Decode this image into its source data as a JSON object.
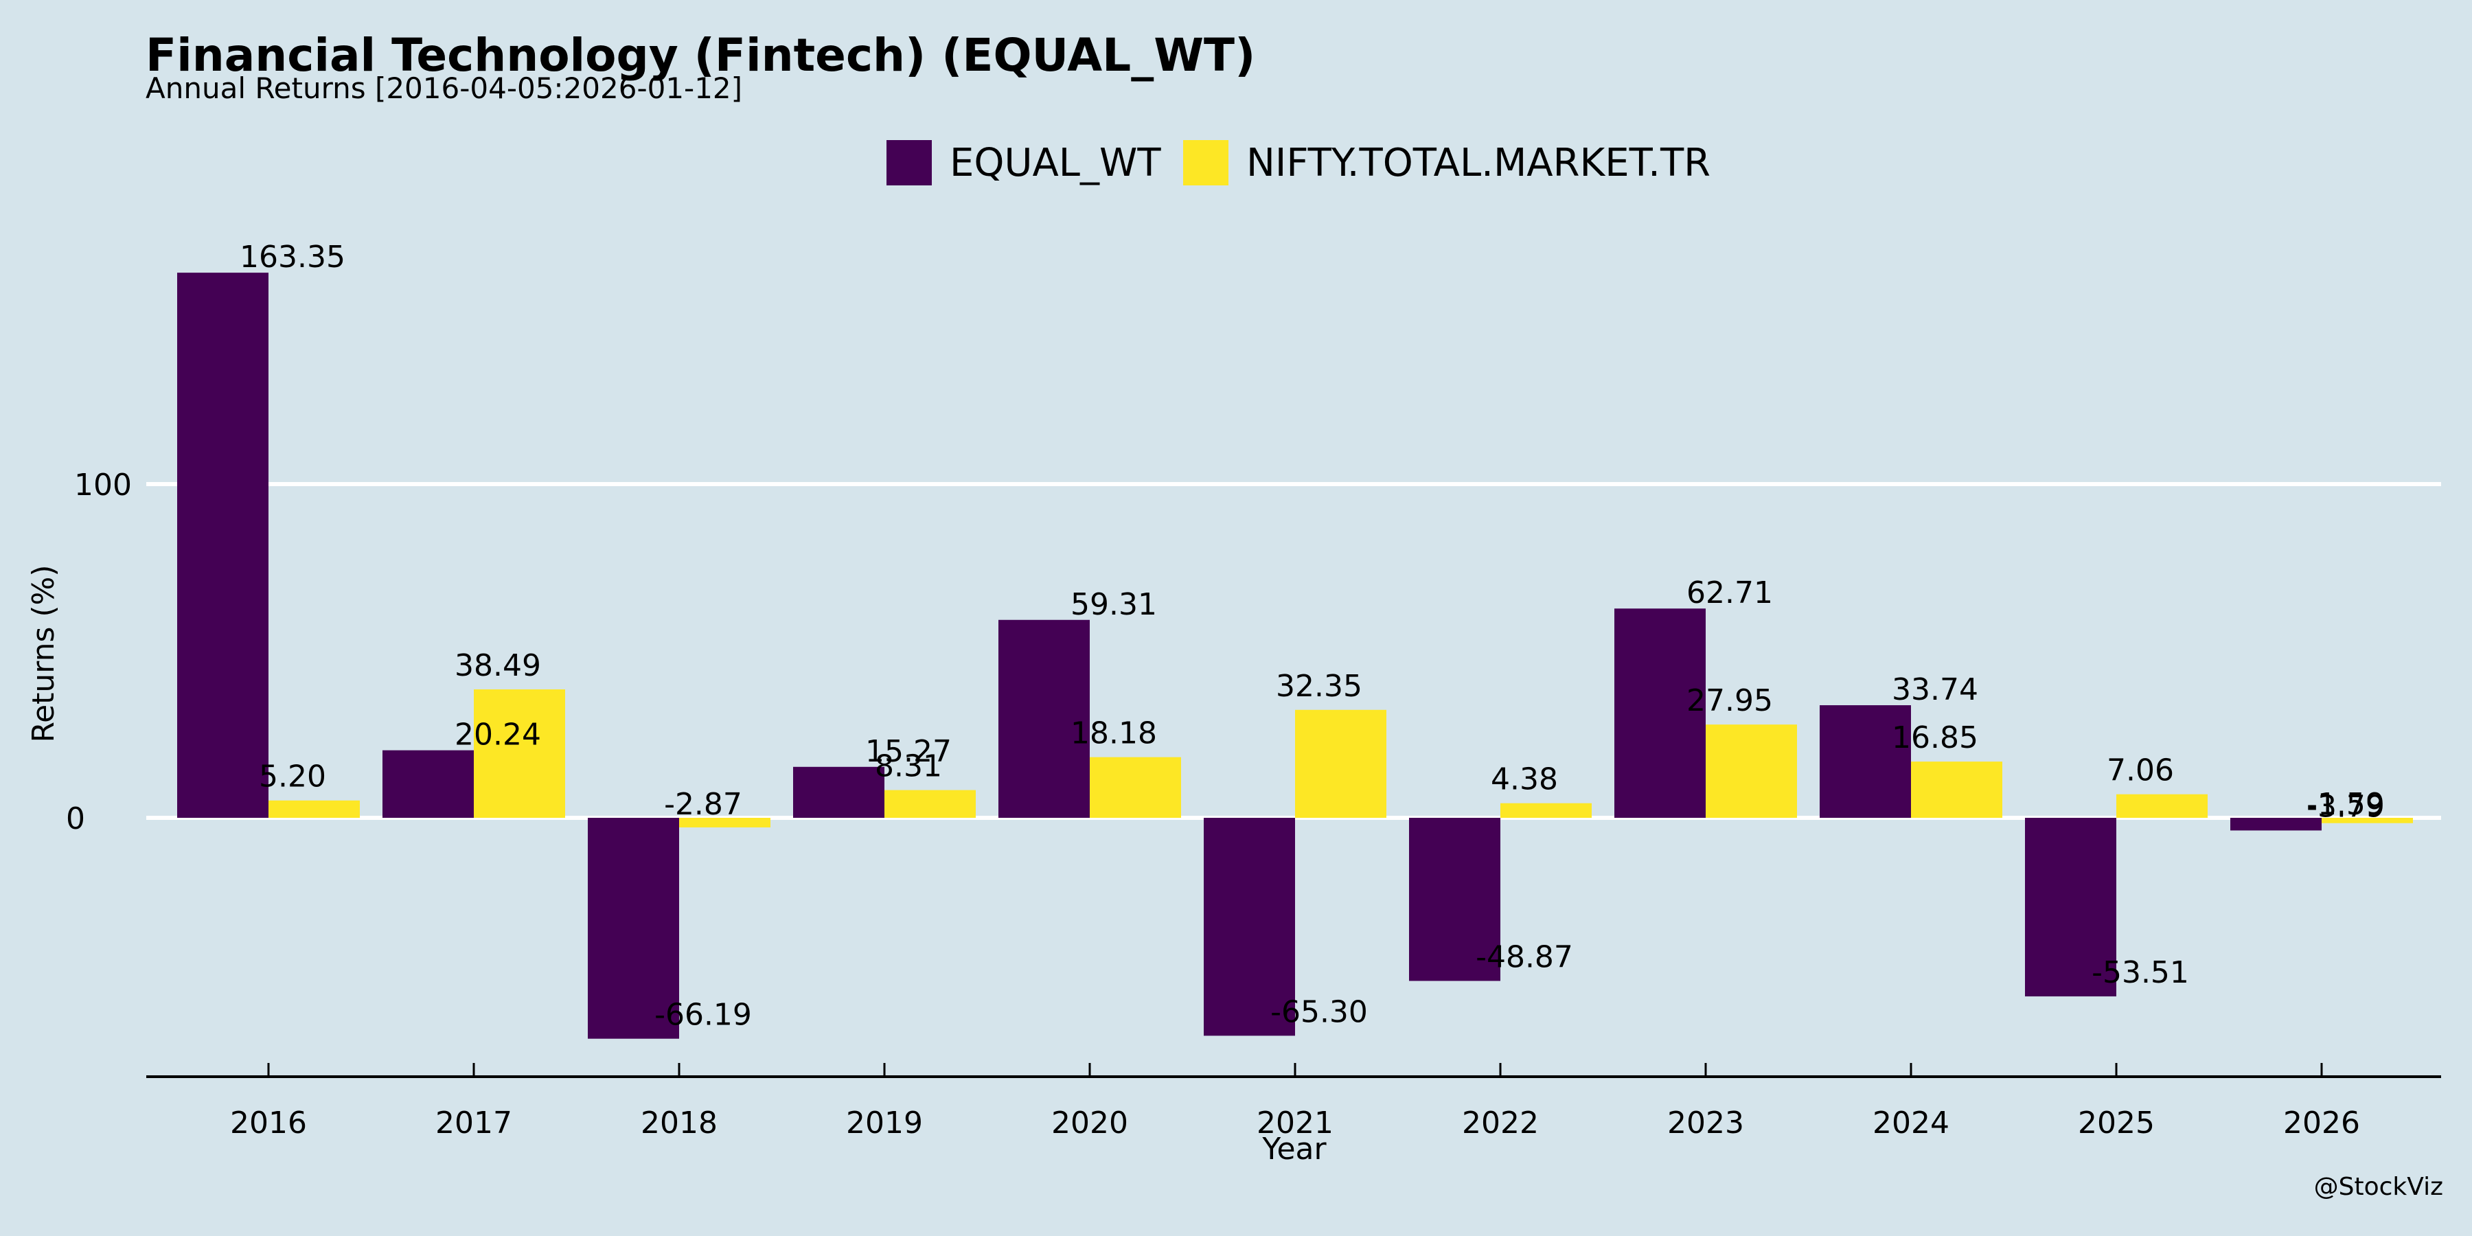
{
  "header": {
    "title": "Financial Technology (Fintech) (EQUAL_WT)",
    "subtitle": "Annual Returns [2016-04-05:2026-01-12]"
  },
  "credit": "@StockViz",
  "colors": {
    "background": "#d5e4eb",
    "series1": "#440154",
    "series2": "#fde725",
    "grid": "#ffffff"
  },
  "chart_data": {
    "type": "bar",
    "title": "Financial Technology (Fintech) (EQUAL_WT)",
    "subtitle": "Annual Returns [2016-04-05:2026-01-12]",
    "xlabel": "Year",
    "ylabel": "Returns (%)",
    "categories": [
      "2016",
      "2017",
      "2018",
      "2019",
      "2020",
      "2021",
      "2022",
      "2023",
      "2024",
      "2025",
      "2026"
    ],
    "series": [
      {
        "name": "EQUAL_WT",
        "color": "#440154",
        "values": [
          163.35,
          20.24,
          -66.19,
          15.27,
          59.31,
          -65.3,
          -48.87,
          62.71,
          33.74,
          -53.51,
          -3.79
        ]
      },
      {
        "name": "NIFTY.TOTAL.MARKET.TR",
        "color": "#fde725",
        "values": [
          5.2,
          38.49,
          -2.87,
          8.31,
          18.18,
          32.35,
          4.38,
          27.95,
          16.85,
          7.06,
          -1.59
        ]
      }
    ],
    "yticks": [
      0,
      100
    ],
    "ylim": [
      -78,
      178
    ],
    "grid": true,
    "legend": "top-center"
  }
}
